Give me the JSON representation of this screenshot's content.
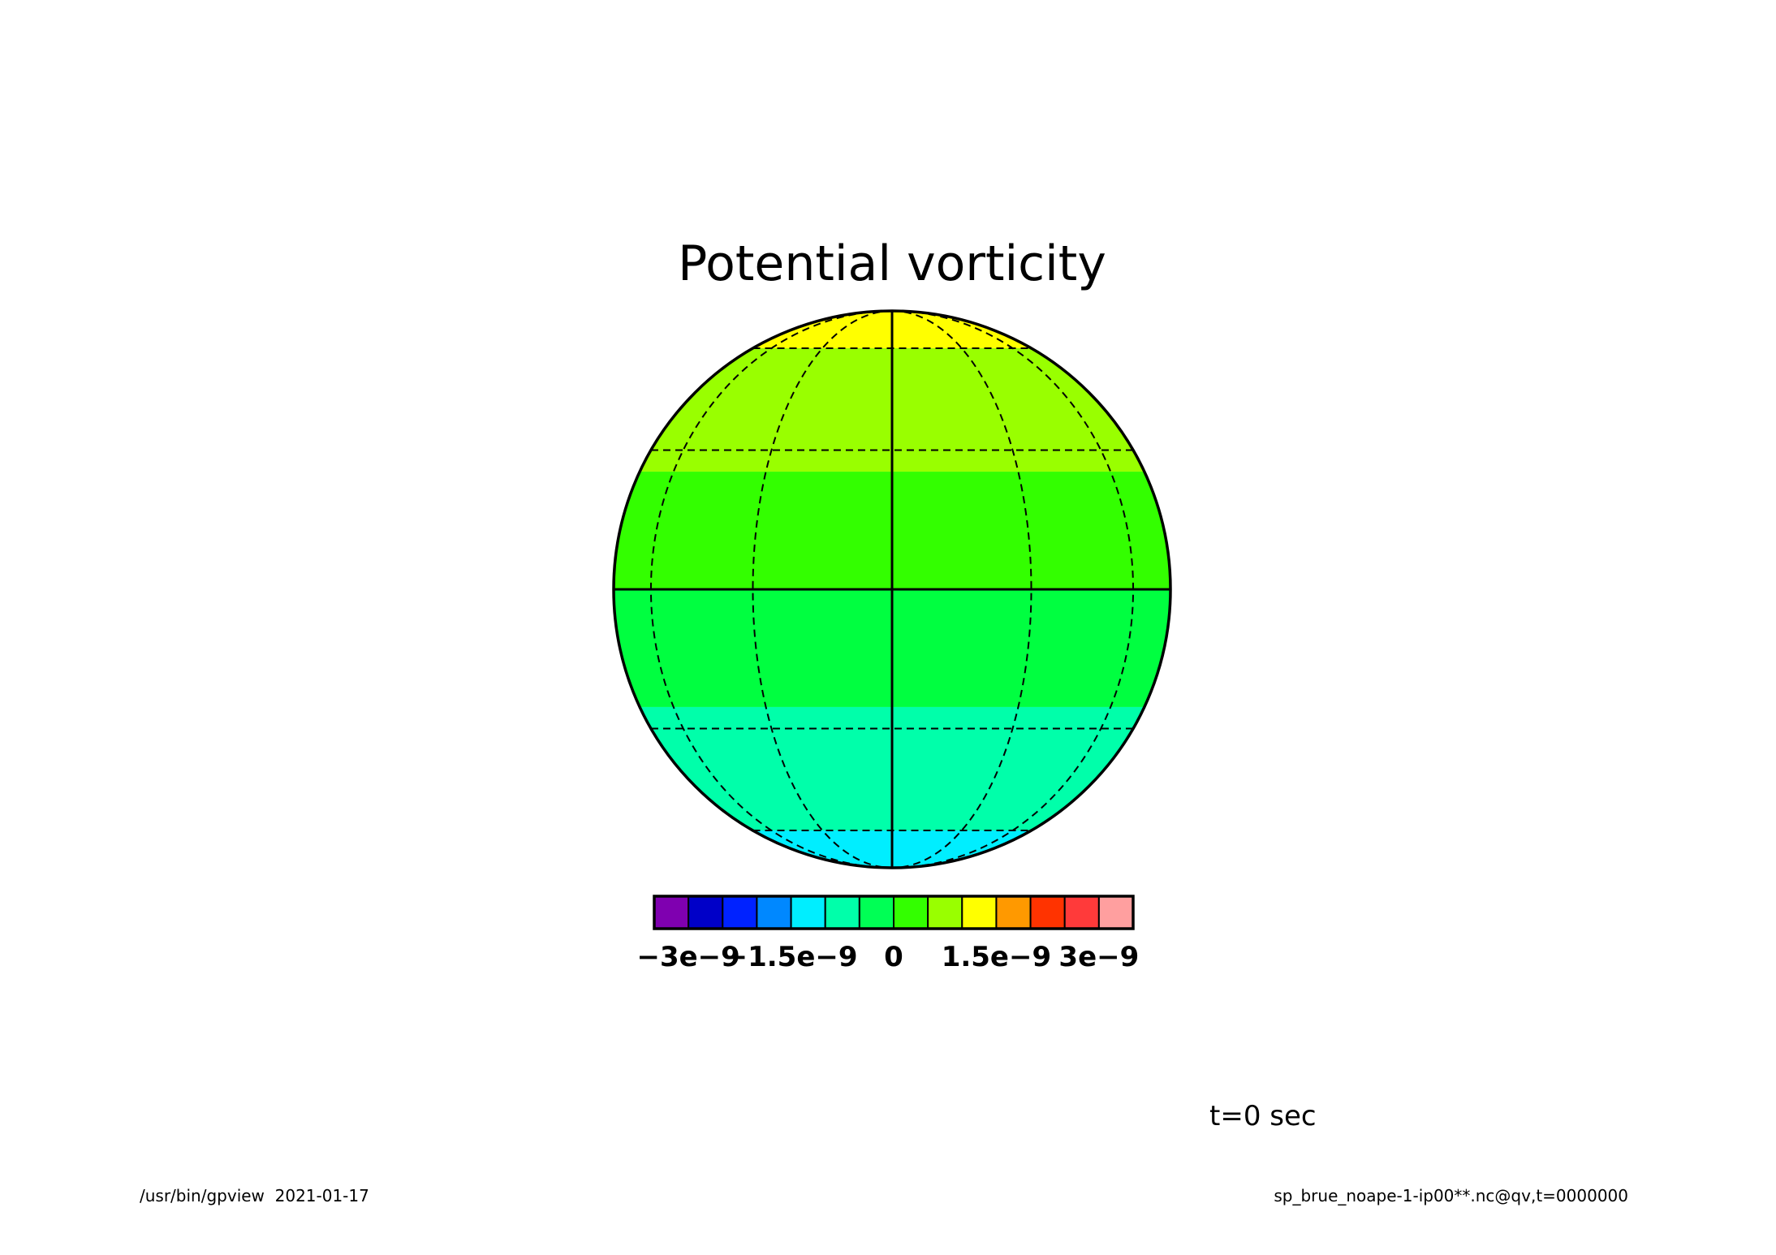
{
  "title": "Potential vorticity",
  "time_label": "t=0 sec",
  "footer_left": "/usr/bin/gpview  2021-01-17",
  "footer_right": "sp_brue_noape-1-ip00**.nc@qv,t=0000000",
  "colorbar": {
    "colors": [
      "#7f00b0",
      "#0000c8",
      "#0022ff",
      "#0088ff",
      "#00eeff",
      "#00ffaa",
      "#00ff55",
      "#33ff00",
      "#99ff00",
      "#ffff00",
      "#ff9900",
      "#ff3300",
      "#ff3a3a",
      "#ff9f9f"
    ],
    "tick_labels": [
      "−3e−9",
      "−1.5e−9",
      "0",
      "1.5e−9",
      "3e−9"
    ],
    "tick_values": [
      -3e-09,
      -1.5e-09,
      0,
      1.5e-09,
      3e-09
    ],
    "range": [
      -3.5e-09,
      3.5e-09
    ]
  },
  "map_data": {
    "projection": "orthographic",
    "bands": [
      {
        "lat_min": 60,
        "lat_max": 90,
        "color": "#ffff00"
      },
      {
        "lat_min": 25,
        "lat_max": 60,
        "color": "#99ff00"
      },
      {
        "lat_min": 0,
        "lat_max": 25,
        "color": "#33ff00"
      },
      {
        "lat_min": -25,
        "lat_max": 0,
        "color": "#00ff40"
      },
      {
        "lat_min": -60,
        "lat_max": -25,
        "color": "#00ffaa"
      },
      {
        "lat_min": -90,
        "lat_max": -60,
        "color": "#00eeff"
      }
    ],
    "graticule_lats": [
      -60,
      -30,
      30,
      60
    ],
    "graticule_lons": [
      -60,
      -30,
      30,
      60
    ]
  }
}
